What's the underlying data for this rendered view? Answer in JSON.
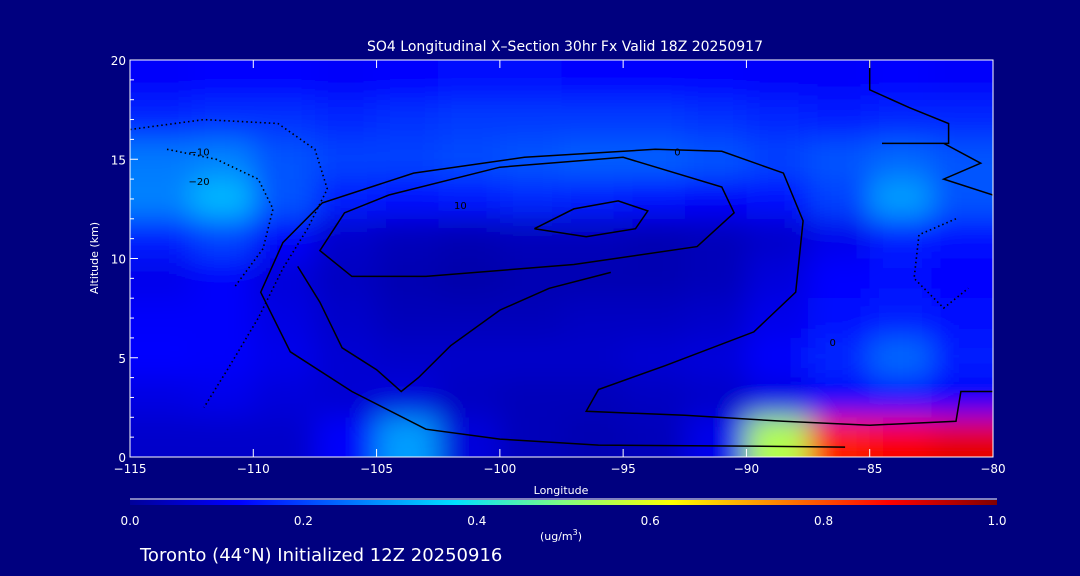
{
  "chart_data": {
    "type": "heatmap",
    "title": "SO4 Longitudinal X–Section 30hr  Fx Valid 18Z 20250917",
    "xlabel": "Longitude",
    "ylabel": "Altitude (km)",
    "xlim": [
      -115,
      -80
    ],
    "ylim": [
      0,
      20
    ],
    "xticks": [
      -115,
      -110,
      -105,
      -100,
      -95,
      -90,
      -85,
      -80
    ],
    "xtick_labels": [
      "−115",
      "−110",
      "−105",
      "−100",
      "−95",
      "−90",
      "−85",
      "−80"
    ],
    "yticks": [
      0,
      5,
      10,
      15,
      20
    ],
    "ytick_labels": [
      "0",
      "5",
      "10",
      "15",
      "20"
    ],
    "grid_lon": [
      -113.75,
      -111.25,
      -108.75,
      -106.25,
      -103.75,
      -101.25,
      -98.75,
      -96.25,
      -93.75,
      -91.25,
      -88.75,
      -86.25,
      -83.75,
      -81.25
    ],
    "grid_alt": [
      19,
      17,
      15,
      13,
      11,
      9,
      7,
      5,
      3,
      1
    ],
    "values": [
      [
        0.12,
        0.13,
        0.13,
        0.12,
        0.13,
        0.14,
        0.14,
        0.13,
        0.13,
        0.13,
        0.12,
        0.12,
        0.13,
        0.12
      ],
      [
        0.17,
        0.18,
        0.18,
        0.17,
        0.18,
        0.19,
        0.19,
        0.19,
        0.19,
        0.18,
        0.17,
        0.16,
        0.17,
        0.17
      ],
      [
        0.26,
        0.27,
        0.22,
        0.2,
        0.2,
        0.21,
        0.22,
        0.23,
        0.23,
        0.22,
        0.2,
        0.22,
        0.24,
        0.22
      ],
      [
        0.27,
        0.33,
        0.22,
        0.16,
        0.14,
        0.15,
        0.17,
        0.16,
        0.14,
        0.12,
        0.14,
        0.2,
        0.3,
        0.22
      ],
      [
        0.16,
        0.2,
        0.12,
        0.06,
        0.04,
        0.03,
        0.04,
        0.04,
        0.03,
        0.04,
        0.06,
        0.1,
        0.16,
        0.14
      ],
      [
        0.1,
        0.12,
        0.08,
        0.05,
        0.03,
        0.02,
        0.03,
        0.03,
        0.03,
        0.04,
        0.08,
        0.13,
        0.14,
        0.13
      ],
      [
        0.12,
        0.12,
        0.09,
        0.06,
        0.04,
        0.04,
        0.04,
        0.05,
        0.05,
        0.06,
        0.1,
        0.14,
        0.16,
        0.14
      ],
      [
        0.13,
        0.12,
        0.1,
        0.07,
        0.06,
        0.06,
        0.06,
        0.06,
        0.07,
        0.08,
        0.12,
        0.17,
        0.24,
        0.16
      ],
      [
        0.09,
        0.1,
        0.08,
        0.07,
        0.08,
        0.05,
        0.04,
        0.04,
        0.05,
        0.06,
        0.09,
        0.12,
        0.14,
        0.12
      ],
      [
        0.06,
        0.06,
        0.06,
        0.12,
        0.3,
        0.08,
        0.04,
        0.03,
        0.04,
        0.1,
        0.55,
        0.85,
        0.88,
        0.9
      ]
    ],
    "contours": [
      {
        "level": 0,
        "label": "0",
        "style": "solid",
        "label_at": [
          -92.8,
          15.4
        ],
        "points": [
          [
            -86,
            0.5
          ],
          [
            -90,
            0.55
          ],
          [
            -96,
            0.6
          ],
          [
            -100,
            0.9
          ],
          [
            -103,
            1.4
          ],
          [
            -106,
            3.3
          ],
          [
            -108.5,
            5.3
          ],
          [
            -109.7,
            8.3
          ],
          [
            -108.8,
            10.8
          ],
          [
            -107.2,
            12.8
          ],
          [
            -103.5,
            14.3
          ],
          [
            -99,
            15.1
          ],
          [
            -93.7,
            15.5
          ],
          [
            -91,
            15.4
          ],
          [
            -88.5,
            14.3
          ],
          [
            -87.7,
            11.9
          ],
          [
            -88,
            8.3
          ],
          [
            -89.7,
            6.3
          ],
          [
            -93.3,
            4.6
          ],
          [
            -96,
            3.4
          ],
          [
            -96.5,
            2.3
          ],
          [
            -92.5,
            2.1
          ],
          [
            -88.5,
            1.8
          ],
          [
            -85,
            1.6
          ],
          [
            -81.5,
            1.8
          ],
          [
            -81.3,
            3.3
          ],
          [
            -80,
            3.3
          ]
        ]
      },
      {
        "level": 0,
        "label": "0",
        "style": "solid",
        "label_at": [
          -86.5,
          5.8
        ],
        "points": [
          [
            -85,
            20
          ],
          [
            -85,
            18.5
          ],
          [
            -83.4,
            17.6
          ],
          [
            -81.8,
            16.8
          ],
          [
            -81.8,
            15.8
          ],
          [
            -84.5,
            15.8
          ],
          [
            -82,
            15.8
          ],
          [
            -80.5,
            14.8
          ],
          [
            -82,
            14
          ],
          [
            -80,
            13.2
          ]
        ]
      },
      {
        "level": 10,
        "label": "10",
        "style": "solid",
        "label_at": [
          -101.6,
          12.7
        ],
        "points": [
          [
            -104.5,
            13.2
          ],
          [
            -100,
            14.6
          ],
          [
            -95,
            15.1
          ],
          [
            -91,
            13.6
          ],
          [
            -90.5,
            12.3
          ],
          [
            -92,
            10.6
          ],
          [
            -97,
            9.7
          ],
          [
            -103,
            9.1
          ],
          [
            -106,
            9.1
          ],
          [
            -107.3,
            10.4
          ],
          [
            -106.3,
            12.3
          ],
          [
            -104.5,
            13.2
          ]
        ]
      },
      {
        "level": 20,
        "label": "",
        "style": "solid",
        "label_at": null,
        "points": [
          [
            -98.6,
            11.5
          ],
          [
            -97,
            12.5
          ],
          [
            -95.2,
            12.9
          ],
          [
            -94,
            12.4
          ],
          [
            -94.5,
            11.5
          ],
          [
            -96.5,
            11.1
          ],
          [
            -98.6,
            11.5
          ]
        ]
      },
      {
        "level": 5,
        "label": "",
        "style": "solid",
        "label_at": null,
        "points": [
          [
            -108.2,
            9.6
          ],
          [
            -107.3,
            7.8
          ],
          [
            -106.4,
            5.5
          ],
          [
            -105,
            4.4
          ],
          [
            -104,
            3.3
          ],
          [
            -103.3,
            4
          ],
          [
            -102,
            5.6
          ],
          [
            -100,
            7.4
          ],
          [
            -98,
            8.5
          ],
          [
            -95.5,
            9.3
          ]
        ]
      },
      {
        "level": -10,
        "label": "−10",
        "style": "dotted",
        "label_at": [
          -112.2,
          15.4
        ],
        "points": [
          [
            -115,
            16.5
          ],
          [
            -112,
            17
          ],
          [
            -109,
            16.8
          ],
          [
            -107.5,
            15.5
          ],
          [
            -107,
            13.5
          ],
          [
            -107.8,
            11.5
          ],
          [
            -108.8,
            9.5
          ],
          [
            -109.8,
            7
          ],
          [
            -111,
            4.5
          ],
          [
            -112,
            2.5
          ]
        ]
      },
      {
        "level": -20,
        "label": "−20",
        "style": "dotted",
        "label_at": [
          -112.2,
          13.9
        ],
        "points": [
          [
            -113.5,
            15.5
          ],
          [
            -111.5,
            15
          ],
          [
            -109.8,
            14
          ],
          [
            -109.2,
            12.5
          ],
          [
            -109.6,
            10.5
          ],
          [
            -110.8,
            8.5
          ]
        ]
      },
      {
        "level": -10,
        "label": "",
        "style": "dotted",
        "label_at": null,
        "points": [
          [
            -81.5,
            12
          ],
          [
            -83,
            11.2
          ],
          [
            -83.2,
            9
          ],
          [
            -82,
            7.5
          ],
          [
            -81,
            8.5
          ]
        ]
      }
    ]
  },
  "colorbar": {
    "ticks": [
      "0.0",
      "0.2",
      "0.4",
      "0.6",
      "0.8",
      "1.0"
    ],
    "tick_values": [
      0,
      0.2,
      0.4,
      0.6,
      0.8,
      1.0
    ],
    "units_prefix": "(ug/m",
    "units_sup": "3",
    "units_suffix": ")"
  },
  "footer": "Toronto (44°N) Initialized 12Z 20250916",
  "colors": {
    "background": "#00007f",
    "stops": [
      "#00009a",
      "#0000ff",
      "#0070ff",
      "#00e0ff",
      "#80ff80",
      "#ffff00",
      "#ff8000",
      "#ff0000",
      "#800000"
    ]
  }
}
